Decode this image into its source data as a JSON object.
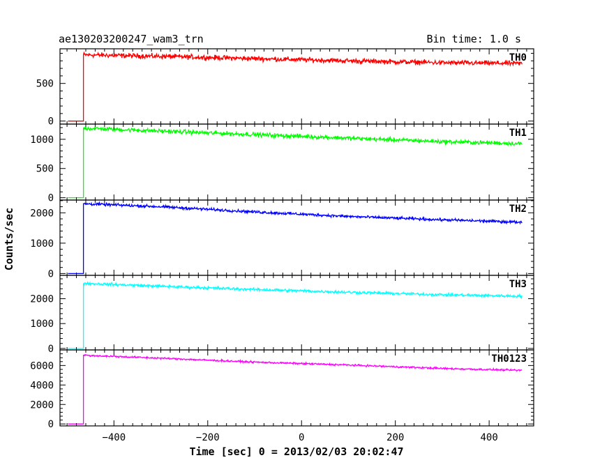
{
  "header": {
    "left": "ae130203200247_wam3_trn",
    "right": "Bin time: 1.0 s"
  },
  "chart_data": {
    "type": "line",
    "xlabel": "Time [sec] 0 = 2013/02/03 20:02:47",
    "ylabel": "Counts/sec",
    "xlim": [
      -515,
      495
    ],
    "x_ticks": [
      -400,
      -200,
      0,
      200,
      400
    ],
    "x_tick_labels": [
      "−400",
      "−200",
      "0",
      "200",
      "400"
    ],
    "onset": -465,
    "x_start": -498,
    "x_end": 470,
    "series": [
      {
        "name": "TH0",
        "color": "#ff0000",
        "ylim": [
          -40,
          960
        ],
        "y_ticks": [
          0,
          500
        ],
        "pre_onset": 0,
        "points": [
          [
            -465,
            880
          ],
          [
            -300,
            860
          ],
          [
            -100,
            830
          ],
          [
            100,
            800
          ],
          [
            300,
            775
          ],
          [
            470,
            765
          ]
        ],
        "noise": 32
      },
      {
        "name": "TH1",
        "color": "#00ff00",
        "ylim": [
          -40,
          1260
        ],
        "y_ticks": [
          0,
          500,
          1000
        ],
        "pre_onset": 0,
        "points": [
          [
            -465,
            1190
          ],
          [
            -300,
            1140
          ],
          [
            -100,
            1080
          ],
          [
            100,
            1020
          ],
          [
            300,
            960
          ],
          [
            470,
            925
          ]
        ],
        "noise": 35
      },
      {
        "name": "TH2",
        "color": "#0000ff",
        "ylim": [
          -60,
          2420
        ],
        "y_ticks": [
          0,
          1000,
          2000
        ],
        "pre_onset": 0,
        "points": [
          [
            -465,
            2300
          ],
          [
            -300,
            2200
          ],
          [
            -100,
            2030
          ],
          [
            100,
            1880
          ],
          [
            300,
            1770
          ],
          [
            470,
            1690
          ]
        ],
        "noise": 45
      },
      {
        "name": "TH3",
        "color": "#00ffff",
        "ylim": [
          -60,
          2940
        ],
        "y_ticks": [
          0,
          1000,
          2000
        ],
        "pre_onset": 0,
        "points": [
          [
            -465,
            2620
          ],
          [
            -300,
            2500
          ],
          [
            -100,
            2370
          ],
          [
            100,
            2260
          ],
          [
            300,
            2160
          ],
          [
            470,
            2100
          ]
        ],
        "noise": 55
      },
      {
        "name": "TH0123",
        "color": "#ff00ff",
        "ylim": [
          -200,
          7600
        ],
        "y_ticks": [
          0,
          2000,
          4000,
          6000
        ],
        "pre_onset": 0,
        "points": [
          [
            -465,
            7050
          ],
          [
            -300,
            6750
          ],
          [
            -100,
            6350
          ],
          [
            100,
            6050
          ],
          [
            300,
            5700
          ],
          [
            470,
            5500
          ]
        ],
        "noise": 90
      }
    ]
  }
}
